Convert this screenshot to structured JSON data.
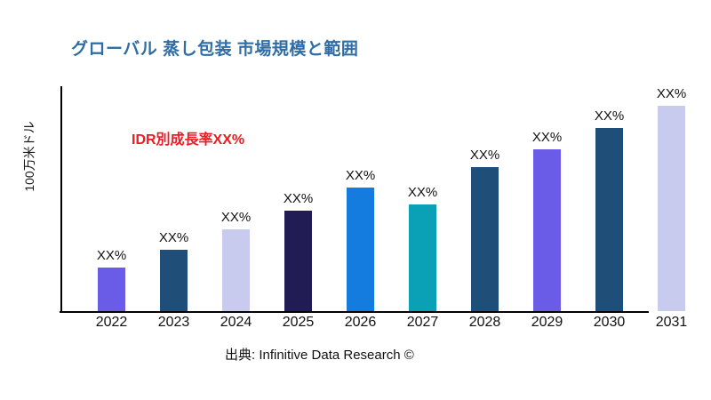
{
  "title": "グローバル 蒸し包装 市場規模と範囲",
  "title_color": "#2E6DA5",
  "annotation": {
    "text": "IDR別成長率XX%",
    "color": "#ED1C24"
  },
  "y_axis_label": "100万米ドル",
  "source": "出典: Infinitive Data Research ©",
  "chart_data": {
    "type": "bar",
    "title": "グローバル 蒸し包装 市場規模と範囲",
    "xlabel": "",
    "ylabel": "100万米ドル",
    "categories": [
      "2022",
      "2023",
      "2024",
      "2025",
      "2026",
      "2027",
      "2028",
      "2029",
      "2030",
      "2031"
    ],
    "bar_value_labels": [
      "XX%",
      "XX%",
      "XX%",
      "XX%",
      "XX%",
      "XX%",
      "XX%",
      "XX%",
      "XX%",
      "XX%"
    ],
    "relative_heights": [
      21,
      30,
      40,
      49,
      60,
      52,
      70,
      79,
      89,
      100
    ],
    "colors": [
      "#6B5CE7",
      "#1F4E79",
      "#C8CBED",
      "#221C54",
      "#147BDF",
      "#0AA0B5",
      "#1F4E79",
      "#6B5CE7",
      "#1F4E79",
      "#C8CBED"
    ],
    "annotation": "IDR別成長率XX%",
    "grid": false,
    "legend": false,
    "ylim_note": "no numeric axis ticks shown; values masked as XX%"
  }
}
